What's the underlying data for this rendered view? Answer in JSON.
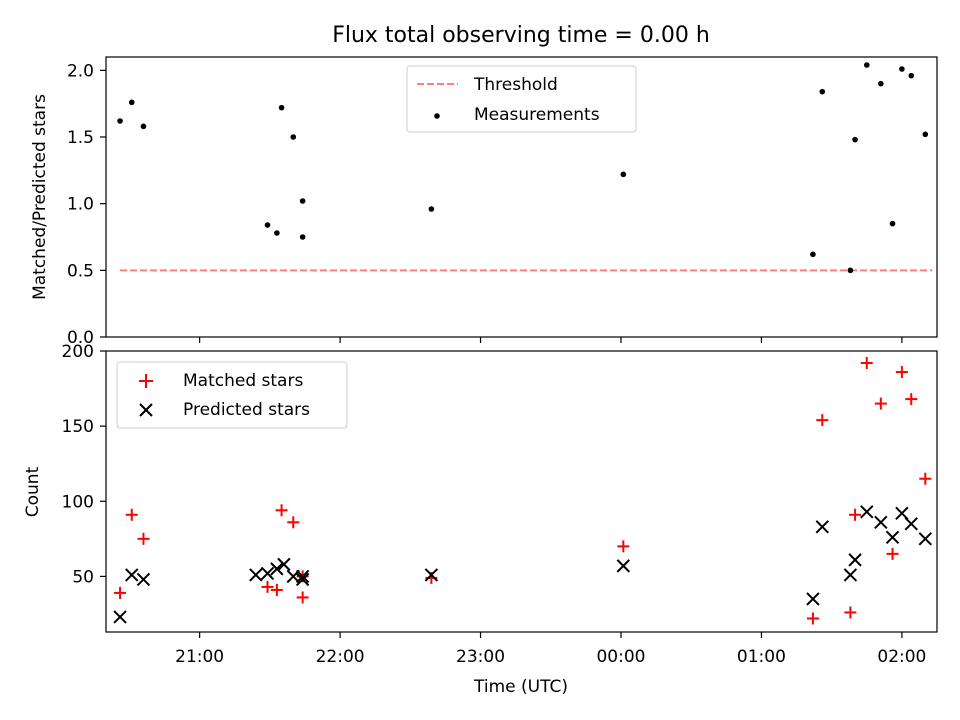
{
  "chart_data": [
    {
      "type": "scatter",
      "title": "Flux total observing time = 0.00 h",
      "xlabel": "",
      "ylabel": "Matched/Predicted stars",
      "ylim": [
        0,
        2.1
      ],
      "yticks": [
        "0.0",
        "0.5",
        "1.0",
        "1.5",
        "2.0"
      ],
      "legend_position": "upper-center",
      "series": [
        {
          "name": "Threshold",
          "style": "dashed-line",
          "color": "#ff7f7f",
          "x": [
            "20:26",
            "02:13"
          ],
          "y": [
            0.5,
            0.5
          ]
        },
        {
          "name": "Measurements",
          "style": "dot",
          "color": "#000000",
          "x": [
            "20:26",
            "20:31",
            "20:36",
            "21:29",
            "21:33",
            "21:35",
            "21:40",
            "21:44",
            "21:44",
            "22:39",
            "00:01",
            "01:22",
            "01:26",
            "01:38",
            "01:40",
            "01:45",
            "01:51",
            "01:56",
            "02:00",
            "02:04",
            "02:10"
          ],
          "y": [
            1.62,
            1.76,
            1.58,
            0.84,
            0.78,
            1.72,
            1.5,
            1.02,
            0.75,
            0.96,
            1.22,
            0.62,
            1.84,
            0.5,
            1.48,
            2.04,
            1.9,
            0.85,
            2.01,
            1.96,
            1.52
          ]
        }
      ]
    },
    {
      "type": "scatter",
      "title": "",
      "xlabel": "Time (UTC)",
      "ylabel": "Count",
      "ylim": [
        13,
        200
      ],
      "yticks": [
        "50",
        "100",
        "150",
        "200"
      ],
      "xticks": [
        "21:00",
        "22:00",
        "23:00",
        "00:00",
        "01:00",
        "02:00"
      ],
      "legend_position": "upper-left",
      "series": [
        {
          "name": "Matched stars",
          "marker": "plus",
          "color": "#ff0000",
          "x": [
            "20:26",
            "20:31",
            "20:36",
            "21:29",
            "21:33",
            "21:35",
            "21:40",
            "21:44",
            "21:44",
            "22:39",
            "00:01",
            "01:22",
            "01:26",
            "01:38",
            "01:40",
            "01:45",
            "01:51",
            "01:56",
            "02:00",
            "02:04",
            "02:10"
          ],
          "y": [
            39,
            91,
            75,
            43,
            41,
            94,
            86,
            50,
            36,
            49,
            70,
            22,
            154,
            26,
            91,
            192,
            165,
            65,
            186,
            168,
            115
          ]
        },
        {
          "name": "Predicted stars",
          "marker": "x",
          "color": "#000000",
          "x": [
            "20:26",
            "20:31",
            "20:36",
            "21:24",
            "21:29",
            "21:33",
            "21:36",
            "21:40",
            "21:44",
            "21:44",
            "22:39",
            "00:01",
            "01:22",
            "01:26",
            "01:38",
            "01:40",
            "01:45",
            "01:51",
            "01:56",
            "02:00",
            "02:04",
            "02:10"
          ],
          "y": [
            23,
            51,
            48,
            51,
            52,
            55,
            58,
            50,
            48,
            50,
            51,
            57,
            35,
            83,
            51,
            61,
            93,
            86,
            76,
            92,
            85,
            75
          ]
        }
      ]
    }
  ]
}
